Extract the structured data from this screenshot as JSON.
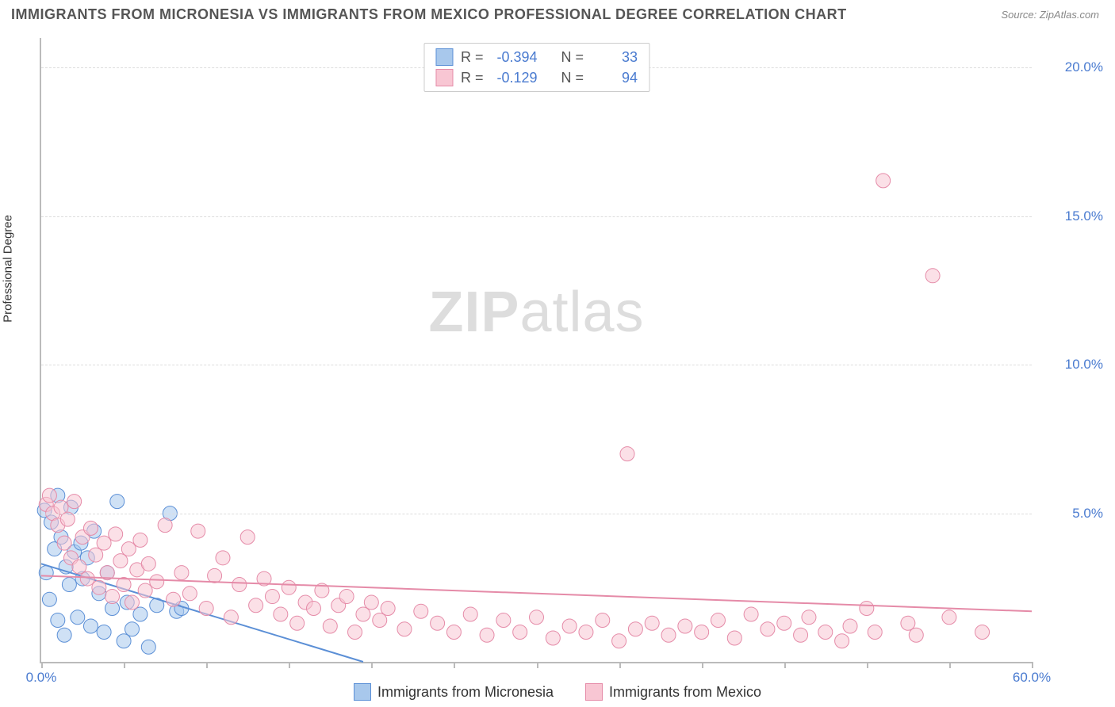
{
  "header": {
    "title": "IMMIGRANTS FROM MICRONESIA VS IMMIGRANTS FROM MEXICO PROFESSIONAL DEGREE CORRELATION CHART",
    "source": "Source: ZipAtlas.com"
  },
  "watermark": {
    "zip": "ZIP",
    "atlas": "atlas"
  },
  "chart": {
    "type": "scatter",
    "y_axis_label": "Professional Degree",
    "background_color": "#ffffff",
    "grid_color": "#dddddd",
    "axis_color": "#bbbbbb",
    "tick_label_color": "#4a7bd0",
    "tick_fontsize": 17,
    "xlim": [
      0,
      60
    ],
    "ylim": [
      0,
      21
    ],
    "x_ticks": [
      0,
      5,
      10,
      15,
      20,
      25,
      30,
      35,
      40,
      45,
      50,
      55,
      60
    ],
    "x_tick_labels": {
      "0": "0.0%",
      "60": "60.0%"
    },
    "y_ticks": [
      5,
      10,
      15,
      20
    ],
    "y_tick_labels": {
      "5": "5.0%",
      "10": "10.0%",
      "15": "15.0%",
      "20": "20.0%"
    },
    "marker_radius": 9,
    "marker_opacity": 0.55,
    "line_width": 2,
    "series": [
      {
        "name": "Immigrants from Micronesia",
        "fill_color": "#a8c8ec",
        "stroke_color": "#5b8fd6",
        "r_value": "-0.394",
        "n_value": "33",
        "regression": {
          "x1": 0,
          "y1": 3.3,
          "x2": 19.5,
          "y2": 0
        },
        "points": [
          [
            0.2,
            5.1
          ],
          [
            0.3,
            3.0
          ],
          [
            0.5,
            2.1
          ],
          [
            0.6,
            4.7
          ],
          [
            0.8,
            3.8
          ],
          [
            1.0,
            1.4
          ],
          [
            1.0,
            5.6
          ],
          [
            1.2,
            4.2
          ],
          [
            1.4,
            0.9
          ],
          [
            1.5,
            3.2
          ],
          [
            1.7,
            2.6
          ],
          [
            1.8,
            5.2
          ],
          [
            2.0,
            3.7
          ],
          [
            2.2,
            1.5
          ],
          [
            2.4,
            4.0
          ],
          [
            2.5,
            2.8
          ],
          [
            2.8,
            3.5
          ],
          [
            3.0,
            1.2
          ],
          [
            3.2,
            4.4
          ],
          [
            3.5,
            2.3
          ],
          [
            3.8,
            1.0
          ],
          [
            4.0,
            3.0
          ],
          [
            4.3,
            1.8
          ],
          [
            4.6,
            5.4
          ],
          [
            5.0,
            0.7
          ],
          [
            5.2,
            2.0
          ],
          [
            5.5,
            1.1
          ],
          [
            6.0,
            1.6
          ],
          [
            6.5,
            0.5
          ],
          [
            7.0,
            1.9
          ],
          [
            7.8,
            5.0
          ],
          [
            8.2,
            1.7
          ],
          [
            8.5,
            1.8
          ]
        ]
      },
      {
        "name": "Immigrants from Mexico",
        "fill_color": "#f8c6d3",
        "stroke_color": "#e58ba8",
        "r_value": "-0.129",
        "n_value": "94",
        "regression": {
          "x1": 0,
          "y1": 2.9,
          "x2": 60,
          "y2": 1.7
        },
        "points": [
          [
            0.3,
            5.3
          ],
          [
            0.5,
            5.6
          ],
          [
            0.7,
            5.0
          ],
          [
            1.0,
            4.6
          ],
          [
            1.2,
            5.2
          ],
          [
            1.4,
            4.0
          ],
          [
            1.6,
            4.8
          ],
          [
            1.8,
            3.5
          ],
          [
            2.0,
            5.4
          ],
          [
            2.3,
            3.2
          ],
          [
            2.5,
            4.2
          ],
          [
            2.8,
            2.8
          ],
          [
            3.0,
            4.5
          ],
          [
            3.3,
            3.6
          ],
          [
            3.5,
            2.5
          ],
          [
            3.8,
            4.0
          ],
          [
            4.0,
            3.0
          ],
          [
            4.3,
            2.2
          ],
          [
            4.5,
            4.3
          ],
          [
            4.8,
            3.4
          ],
          [
            5.0,
            2.6
          ],
          [
            5.3,
            3.8
          ],
          [
            5.5,
            2.0
          ],
          [
            5.8,
            3.1
          ],
          [
            6.0,
            4.1
          ],
          [
            6.3,
            2.4
          ],
          [
            6.5,
            3.3
          ],
          [
            7.0,
            2.7
          ],
          [
            7.5,
            4.6
          ],
          [
            8.0,
            2.1
          ],
          [
            8.5,
            3.0
          ],
          [
            9.0,
            2.3
          ],
          [
            9.5,
            4.4
          ],
          [
            10.0,
            1.8
          ],
          [
            10.5,
            2.9
          ],
          [
            11.0,
            3.5
          ],
          [
            11.5,
            1.5
          ],
          [
            12.0,
            2.6
          ],
          [
            12.5,
            4.2
          ],
          [
            13.0,
            1.9
          ],
          [
            13.5,
            2.8
          ],
          [
            14.0,
            2.2
          ],
          [
            14.5,
            1.6
          ],
          [
            15.0,
            2.5
          ],
          [
            15.5,
            1.3
          ],
          [
            16.0,
            2.0
          ],
          [
            16.5,
            1.8
          ],
          [
            17.0,
            2.4
          ],
          [
            17.5,
            1.2
          ],
          [
            18.0,
            1.9
          ],
          [
            18.5,
            2.2
          ],
          [
            19.0,
            1.0
          ],
          [
            19.5,
            1.6
          ],
          [
            20.0,
            2.0
          ],
          [
            20.5,
            1.4
          ],
          [
            21.0,
            1.8
          ],
          [
            22.0,
            1.1
          ],
          [
            23.0,
            1.7
          ],
          [
            24.0,
            1.3
          ],
          [
            25.0,
            1.0
          ],
          [
            26.0,
            1.6
          ],
          [
            27.0,
            0.9
          ],
          [
            28.0,
            1.4
          ],
          [
            29.0,
            1.0
          ],
          [
            30.0,
            1.5
          ],
          [
            31.0,
            0.8
          ],
          [
            32.0,
            1.2
          ],
          [
            33.0,
            1.0
          ],
          [
            34.0,
            1.4
          ],
          [
            35.0,
            0.7
          ],
          [
            35.5,
            7.0
          ],
          [
            36.0,
            1.1
          ],
          [
            37.0,
            1.3
          ],
          [
            38.0,
            0.9
          ],
          [
            39.0,
            1.2
          ],
          [
            40.0,
            1.0
          ],
          [
            41.0,
            1.4
          ],
          [
            42.0,
            0.8
          ],
          [
            43.0,
            1.6
          ],
          [
            44.0,
            1.1
          ],
          [
            45.0,
            1.3
          ],
          [
            46.0,
            0.9
          ],
          [
            46.5,
            1.5
          ],
          [
            47.5,
            1.0
          ],
          [
            48.5,
            0.7
          ],
          [
            49.0,
            1.2
          ],
          [
            50.0,
            1.8
          ],
          [
            50.5,
            1.0
          ],
          [
            51.0,
            16.2
          ],
          [
            52.5,
            1.3
          ],
          [
            53.0,
            0.9
          ],
          [
            54.0,
            13.0
          ],
          [
            55.0,
            1.5
          ],
          [
            57.0,
            1.0
          ]
        ]
      }
    ]
  },
  "stats_legend": {
    "r_label": "R =",
    "n_label": "N ="
  },
  "bottom_legend_labels": [
    "Immigrants from Micronesia",
    "Immigrants from Mexico"
  ]
}
